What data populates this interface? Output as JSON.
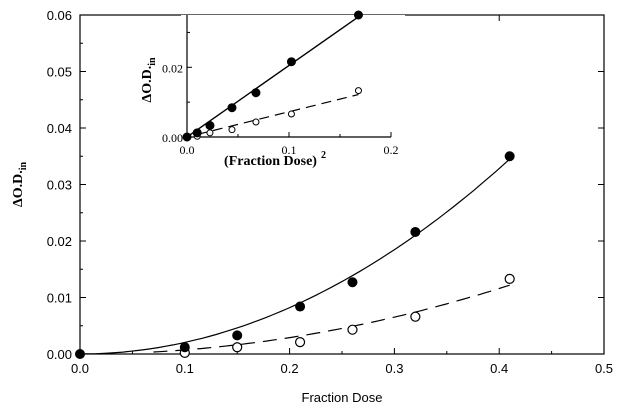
{
  "chart_data": [
    {
      "type": "scatter",
      "panel": "main",
      "xlabel": "Fraction Dose",
      "ylabel_main": "ΔO.D.",
      "ylabel_sub": "in",
      "xlim": [
        0.0,
        0.5
      ],
      "ylim": [
        0.0,
        0.06
      ],
      "x_ticks": [
        "0.0",
        "0.1",
        "0.2",
        "0.3",
        "0.4",
        "0.5"
      ],
      "y_ticks": [
        "0.00",
        "0.01",
        "0.02",
        "0.03",
        "0.04",
        "0.05",
        "0.06"
      ],
      "grid": false,
      "series": [
        {
          "marker": "filled-circle",
          "line": "solid",
          "x": [
            0.0,
            0.1,
            0.15,
            0.21,
            0.26,
            0.32,
            0.41
          ],
          "y": [
            0.0,
            0.0012,
            0.0033,
            0.0084,
            0.0127,
            0.0216,
            0.035
          ]
        },
        {
          "marker": "open-circle",
          "line": "dashed",
          "x": [
            0.1,
            0.15,
            0.21,
            0.26,
            0.32,
            0.41
          ],
          "y": [
            0.0002,
            0.0012,
            0.0021,
            0.0043,
            0.0066,
            0.0133
          ]
        }
      ]
    },
    {
      "type": "scatter",
      "panel": "inset",
      "xlabel_main": "(Fraction Dose)",
      "xlabel_sup": "2",
      "ylabel_main": "ΔO.D.",
      "ylabel_sub": "in",
      "xlim": [
        0.0,
        0.2
      ],
      "ylim": [
        0.0,
        0.035
      ],
      "x_ticks": [
        "0.0",
        "0.1",
        "0.2"
      ],
      "y_ticks": [
        "0.00",
        "0.02"
      ],
      "grid": false,
      "series": [
        {
          "marker": "filled-circle",
          "line": "solid",
          "x": [
            0.0,
            0.01,
            0.0225,
            0.0441,
            0.0676,
            0.1024,
            0.1681
          ],
          "y": [
            0.0,
            0.0012,
            0.0033,
            0.0084,
            0.0127,
            0.0216,
            0.035
          ]
        },
        {
          "marker": "open-circle",
          "line": "dashed",
          "x": [
            0.01,
            0.0225,
            0.0441,
            0.0676,
            0.1024,
            0.1681
          ],
          "y": [
            0.0002,
            0.0012,
            0.0021,
            0.0043,
            0.0066,
            0.0133
          ]
        }
      ]
    }
  ]
}
